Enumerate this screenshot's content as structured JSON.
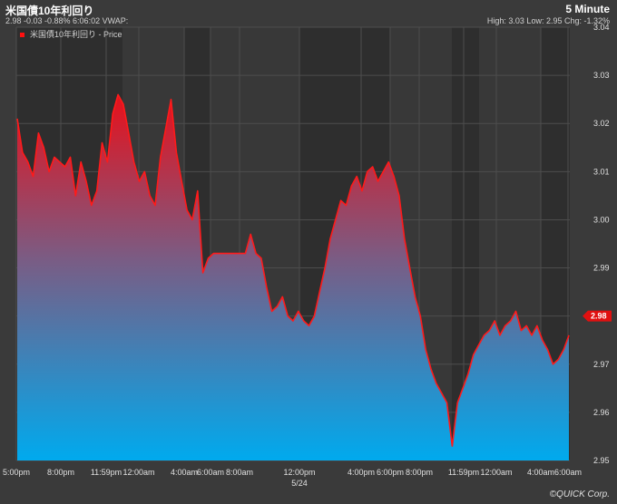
{
  "header": {
    "title": "米国債10年利回り",
    "subline": "2.98 -0.03 -0.88% 6:06:02 VWAP:",
    "interval": "5 Minute",
    "stats": "High: 3.03 Low: 2.95 Chg: -1.32%"
  },
  "legend": {
    "label": "米国債10年利回り - Price"
  },
  "footer": {
    "copyright": "©QUICK Corp."
  },
  "colors": {
    "line": "#ff1a1a",
    "fill_top": "#e8101a",
    "fill_bottom": "#00aaee",
    "last_badge": "#e01010"
  },
  "chart_data": {
    "type": "area",
    "title": "米国債10年利回り",
    "xlabel": "",
    "ylabel": "",
    "ylim": [
      2.95,
      3.04
    ],
    "yticks": [
      "3.04",
      "3.03",
      "3.02",
      "3.01",
      "3.00",
      "2.99",
      "2.98",
      "2.97",
      "2.96",
      "2.95"
    ],
    "xticks": [
      "5:00pm",
      "8:00pm",
      "11:59pm",
      "12:00am",
      "4:00am",
      "6:00am",
      "8:00am",
      "12:00pm",
      "4:00pm",
      "6:00pm",
      "8:00pm",
      "11:59pm",
      "12:00am",
      "4:00am",
      "6:00am"
    ],
    "date_marker": "5/24",
    "last_value": "2.98",
    "grid": true,
    "legend_position": "top-left",
    "series": [
      {
        "name": "米国債10年利回り - Price",
        "values": [
          3.021,
          3.014,
          3.012,
          3.009,
          3.018,
          3.015,
          3.01,
          3.013,
          3.012,
          3.011,
          3.013,
          3.005,
          3.012,
          3.008,
          3.003,
          3.006,
          3.016,
          3.012,
          3.022,
          3.026,
          3.024,
          3.018,
          3.012,
          3.008,
          3.01,
          3.005,
          3.003,
          3.013,
          3.019,
          3.025,
          3.014,
          3.008,
          3.002,
          3.0,
          3.006,
          2.989,
          2.992,
          2.993,
          2.993,
          2.993,
          2.993,
          2.993,
          2.993,
          2.993,
          2.997,
          2.993,
          2.992,
          2.986,
          2.981,
          2.982,
          2.984,
          2.98,
          2.979,
          2.981,
          2.979,
          2.978,
          2.98,
          2.985,
          2.99,
          2.996,
          3.0,
          3.004,
          3.003,
          3.007,
          3.009,
          3.006,
          3.01,
          3.011,
          3.008,
          3.01,
          3.012,
          3.009,
          3.005,
          2.996,
          2.99,
          2.984,
          2.98,
          2.973,
          2.969,
          2.966,
          2.964,
          2.962,
          2.953,
          2.962,
          2.965,
          2.968,
          2.972,
          2.974,
          2.976,
          2.977,
          2.979,
          2.976,
          2.978,
          2.979,
          2.981,
          2.977,
          2.978,
          2.976,
          2.978,
          2.975,
          2.973,
          2.97,
          2.971,
          2.973,
          2.976
        ]
      }
    ]
  }
}
